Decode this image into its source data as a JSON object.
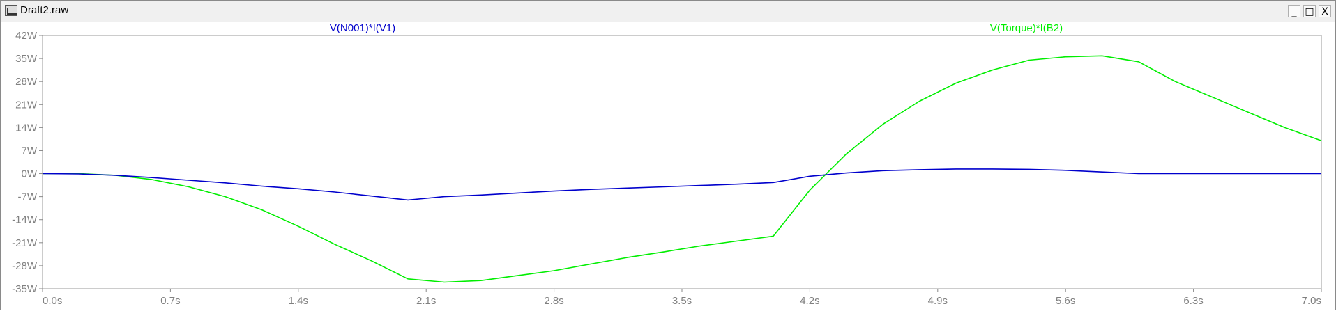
{
  "window": {
    "title": "Draft2.raw",
    "minimize_glyph": "_",
    "maximize_glyph": "□",
    "close_glyph": "X"
  },
  "chart_data": {
    "type": "line",
    "title": "",
    "xlabel": "",
    "ylabel": "",
    "xlim": [
      0,
      7
    ],
    "ylim": [
      -35,
      42
    ],
    "x_ticks": [
      0,
      0.7,
      1.4,
      2.1,
      2.8,
      3.5,
      4.2,
      4.9,
      5.6,
      6.3,
      7.0
    ],
    "x_tick_labels": [
      "0.0s",
      "0.7s",
      "1.4s",
      "2.1s",
      "2.8s",
      "3.5s",
      "4.2s",
      "4.9s",
      "5.6s",
      "6.3s",
      "7.0s"
    ],
    "y_ticks": [
      42,
      35,
      28,
      21,
      14,
      7,
      0,
      -7,
      -14,
      -21,
      -28,
      -35
    ],
    "y_tick_labels": [
      "42W",
      "35W",
      "28W",
      "21W",
      "14W",
      "7W",
      "0W",
      "-7W",
      "-14W",
      "-21W",
      "-28W",
      "-35W"
    ],
    "grid": false,
    "legend": "top, labels above plot",
    "series": [
      {
        "name": "V(N001)*I(V1)",
        "color": "#0000cc",
        "x": [
          0,
          0.2,
          0.4,
          0.6,
          0.8,
          1.0,
          1.2,
          1.4,
          1.6,
          1.8,
          2.0,
          2.1,
          2.2,
          2.4,
          2.6,
          2.8,
          3.0,
          3.2,
          3.4,
          3.6,
          3.8,
          4.0,
          4.2,
          4.4,
          4.6,
          4.8,
          5.0,
          5.2,
          5.4,
          5.6,
          5.8,
          6.0,
          6.2,
          6.5,
          7.0
        ],
        "values": [
          0,
          -0.1,
          -0.5,
          -1.2,
          -2.0,
          -2.8,
          -3.8,
          -4.6,
          -5.6,
          -6.8,
          -8.0,
          -7.5,
          -7.0,
          -6.5,
          -5.9,
          -5.3,
          -4.8,
          -4.4,
          -4.0,
          -3.6,
          -3.2,
          -2.7,
          -0.8,
          0.2,
          0.9,
          1.2,
          1.4,
          1.4,
          1.3,
          1.0,
          0.5,
          0,
          0,
          0,
          0
        ]
      },
      {
        "name": "V(Torque)*I(B2)",
        "color": "#00ee00",
        "x": [
          0,
          0.2,
          0.4,
          0.6,
          0.8,
          1.0,
          1.2,
          1.4,
          1.6,
          1.8,
          2.0,
          2.2,
          2.4,
          2.6,
          2.8,
          3.0,
          3.2,
          3.4,
          3.6,
          3.8,
          4.0,
          4.2,
          4.4,
          4.6,
          4.8,
          5.0,
          5.2,
          5.4,
          5.6,
          5.8,
          6.0,
          6.2,
          6.5,
          6.8,
          7.0
        ],
        "values": [
          0,
          0,
          -0.5,
          -1.8,
          -4.0,
          -7.0,
          -11.0,
          -16.0,
          -21.5,
          -26.5,
          -32.0,
          -33.0,
          -32.5,
          -31.0,
          -29.5,
          -27.5,
          -25.5,
          -23.8,
          -22.0,
          -20.5,
          -19.0,
          -5.0,
          6.0,
          15.0,
          22.0,
          27.5,
          31.5,
          34.5,
          35.5,
          35.8,
          34.0,
          28.0,
          21.0,
          14.0,
          10.0
        ]
      }
    ]
  }
}
